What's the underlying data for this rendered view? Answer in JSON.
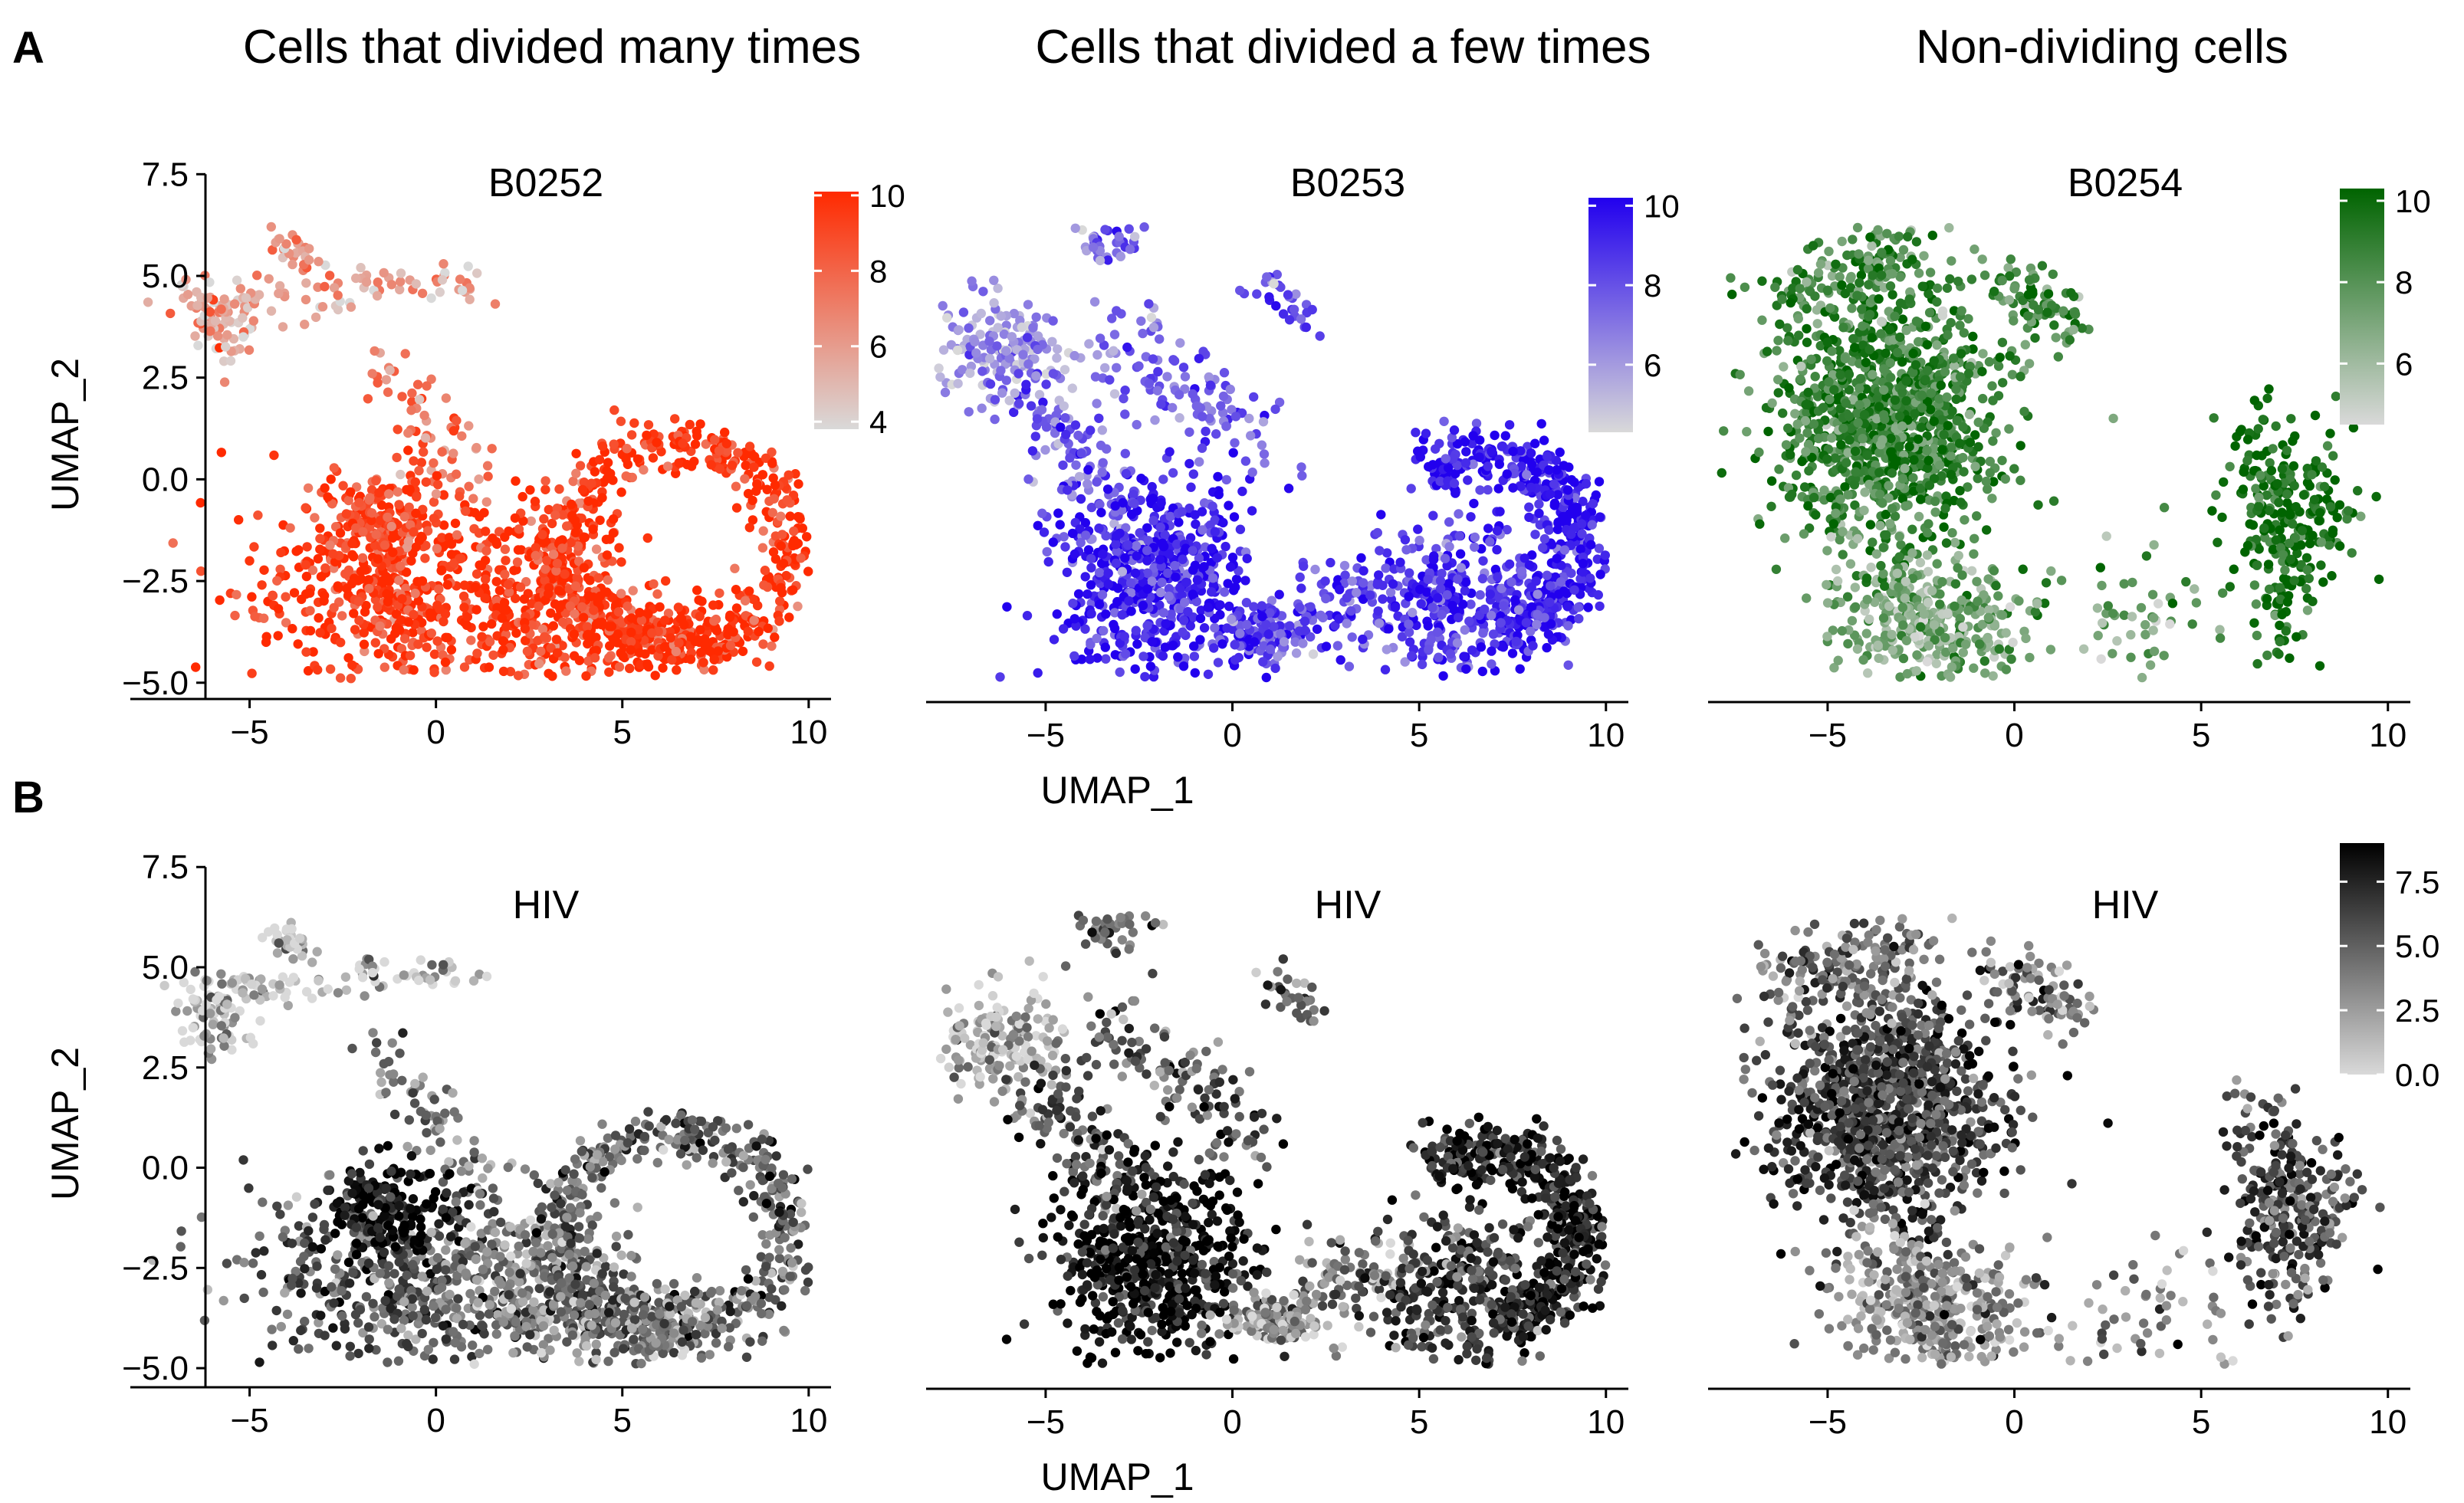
{
  "figure": {
    "row_labels": [
      "A",
      "B"
    ],
    "group_titles": [
      "Cells that divided many times",
      "Cells that divided a few times",
      "Non-dividing cells"
    ]
  },
  "colors": {
    "low": "#d9d9d9",
    "B0252": "#ff2a00",
    "B0253": "#2200ee",
    "B0254": "#006400",
    "HIV": "#000000"
  },
  "chart_data": [
    {
      "type": "scatter",
      "id": "A1",
      "panel_title": "B0252",
      "color_key": "B0252",
      "xlabel": "",
      "ylabel": "UMAP_2",
      "xlim": [
        -8.2,
        10.6
      ],
      "ylim": [
        -5.4,
        7.6
      ],
      "x_ticks": [
        -5,
        0,
        5,
        10
      ],
      "y_ticks": [
        -5.0,
        -2.5,
        0.0,
        2.5,
        5.0,
        7.5
      ],
      "legend": {
        "min": 3.8,
        "max": 10.1,
        "ticks": [
          4,
          6,
          8,
          10
        ],
        "placement": "top-right"
      }
    },
    {
      "type": "scatter",
      "id": "A2",
      "panel_title": "B0253",
      "color_key": "B0253",
      "xlabel": "UMAP_1",
      "ylabel": "",
      "xlim": [
        -8.2,
        10.6
      ],
      "ylim": [
        -5.4,
        7.6
      ],
      "x_ticks": [
        -5,
        0,
        5,
        10
      ],
      "y_ticks": [],
      "legend": {
        "min": 4.3,
        "max": 10.2,
        "ticks": [
          6,
          8,
          10
        ],
        "placement": "top-right"
      }
    },
    {
      "type": "scatter",
      "id": "A3",
      "panel_title": "B0254",
      "color_key": "B0254",
      "xlabel": "",
      "ylabel": "",
      "xlim": [
        -8.2,
        10.6
      ],
      "ylim": [
        -5.4,
        7.6
      ],
      "x_ticks": [
        -5,
        0,
        5,
        10
      ],
      "y_ticks": [],
      "legend": {
        "min": 4.5,
        "max": 10.3,
        "ticks": [
          6,
          8,
          10
        ],
        "placement": "top-right"
      }
    },
    {
      "type": "scatter",
      "id": "B1",
      "panel_title": "HIV",
      "color_key": "HIV",
      "xlabel": "",
      "ylabel": "UMAP_2",
      "xlim": [
        -8.2,
        10.6
      ],
      "ylim": [
        -5.4,
        7.6
      ],
      "x_ticks": [
        -5,
        0,
        5,
        10
      ],
      "y_ticks": [
        -5.0,
        -2.5,
        0.0,
        2.5,
        5.0,
        7.5
      ]
    },
    {
      "type": "scatter",
      "id": "B2",
      "panel_title": "HIV",
      "color_key": "HIV",
      "xlabel": "UMAP_1",
      "ylabel": "",
      "xlim": [
        -8.2,
        10.6
      ],
      "ylim": [
        -5.4,
        7.6
      ],
      "x_ticks": [
        -5,
        0,
        5,
        10
      ],
      "y_ticks": []
    },
    {
      "type": "scatter",
      "id": "B3",
      "panel_title": "HIV",
      "color_key": "HIV",
      "xlabel": "",
      "ylabel": "",
      "xlim": [
        -8.2,
        10.6
      ],
      "ylim": [
        -5.4,
        7.6
      ],
      "x_ticks": [
        -5,
        0,
        5,
        10
      ],
      "y_ticks": [],
      "legend": {
        "min": 0.0,
        "max": 9.0,
        "ticks": [
          0.0,
          2.5,
          5.0,
          7.5
        ],
        "placement": "right"
      }
    }
  ]
}
